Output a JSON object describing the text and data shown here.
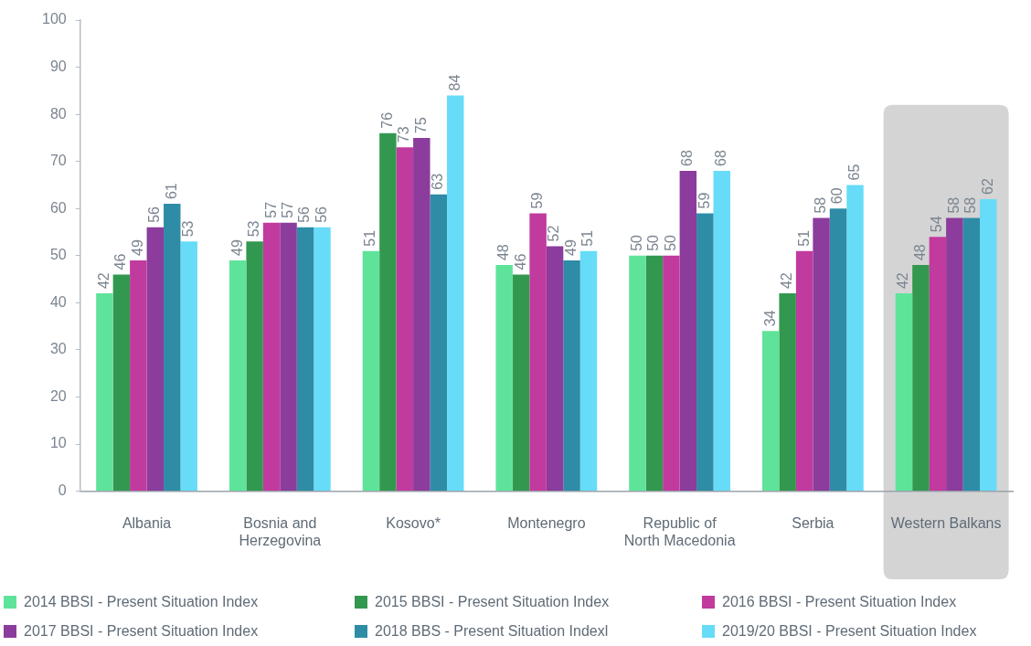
{
  "chart_data": {
    "type": "bar",
    "categories": [
      "Albania",
      "Bosnia and Herzegovina",
      "Kosovo*",
      "Montenegro",
      "Republic of North Macedonia",
      "Serbia",
      "Western Balkans"
    ],
    "series": [
      {
        "name": "2014 BBSI - Present Situation Index",
        "color": "#5fe39a",
        "values": [
          42,
          49,
          51,
          48,
          50,
          34,
          42
        ]
      },
      {
        "name": "2015 BBSI - Present Situation Index",
        "color": "#33984f",
        "values": [
          46,
          53,
          76,
          46,
          50,
          42,
          48
        ]
      },
      {
        "name": "2016 BBSI - Present Situation Index",
        "color": "#c13a9e",
        "values": [
          49,
          57,
          73,
          59,
          50,
          51,
          54
        ]
      },
      {
        "name": "2017 BBSI - Present Situation Index",
        "color": "#8b3c9c",
        "values": [
          56,
          57,
          75,
          52,
          68,
          58,
          58
        ]
      },
      {
        "name": "2018 BBS - Present Situation Indexl",
        "color": "#2f8ca6",
        "values": [
          61,
          56,
          63,
          49,
          59,
          60,
          58
        ]
      },
      {
        "name": "2019/20 BBSI - Present Situation Index",
        "color": "#66dcf8",
        "values": [
          53,
          56,
          84,
          51,
          68,
          65,
          62
        ]
      }
    ],
    "ylim": [
      0,
      100
    ],
    "yticks": [
      0,
      10,
      20,
      30,
      40,
      50,
      60,
      70,
      80,
      90,
      100
    ],
    "bands": [
      {
        "axis": "x",
        "from": "Western Balkans",
        "to": "Western Balkans",
        "color": "#d4d4d4"
      }
    ],
    "data_labels": true,
    "legend": "bottom"
  }
}
